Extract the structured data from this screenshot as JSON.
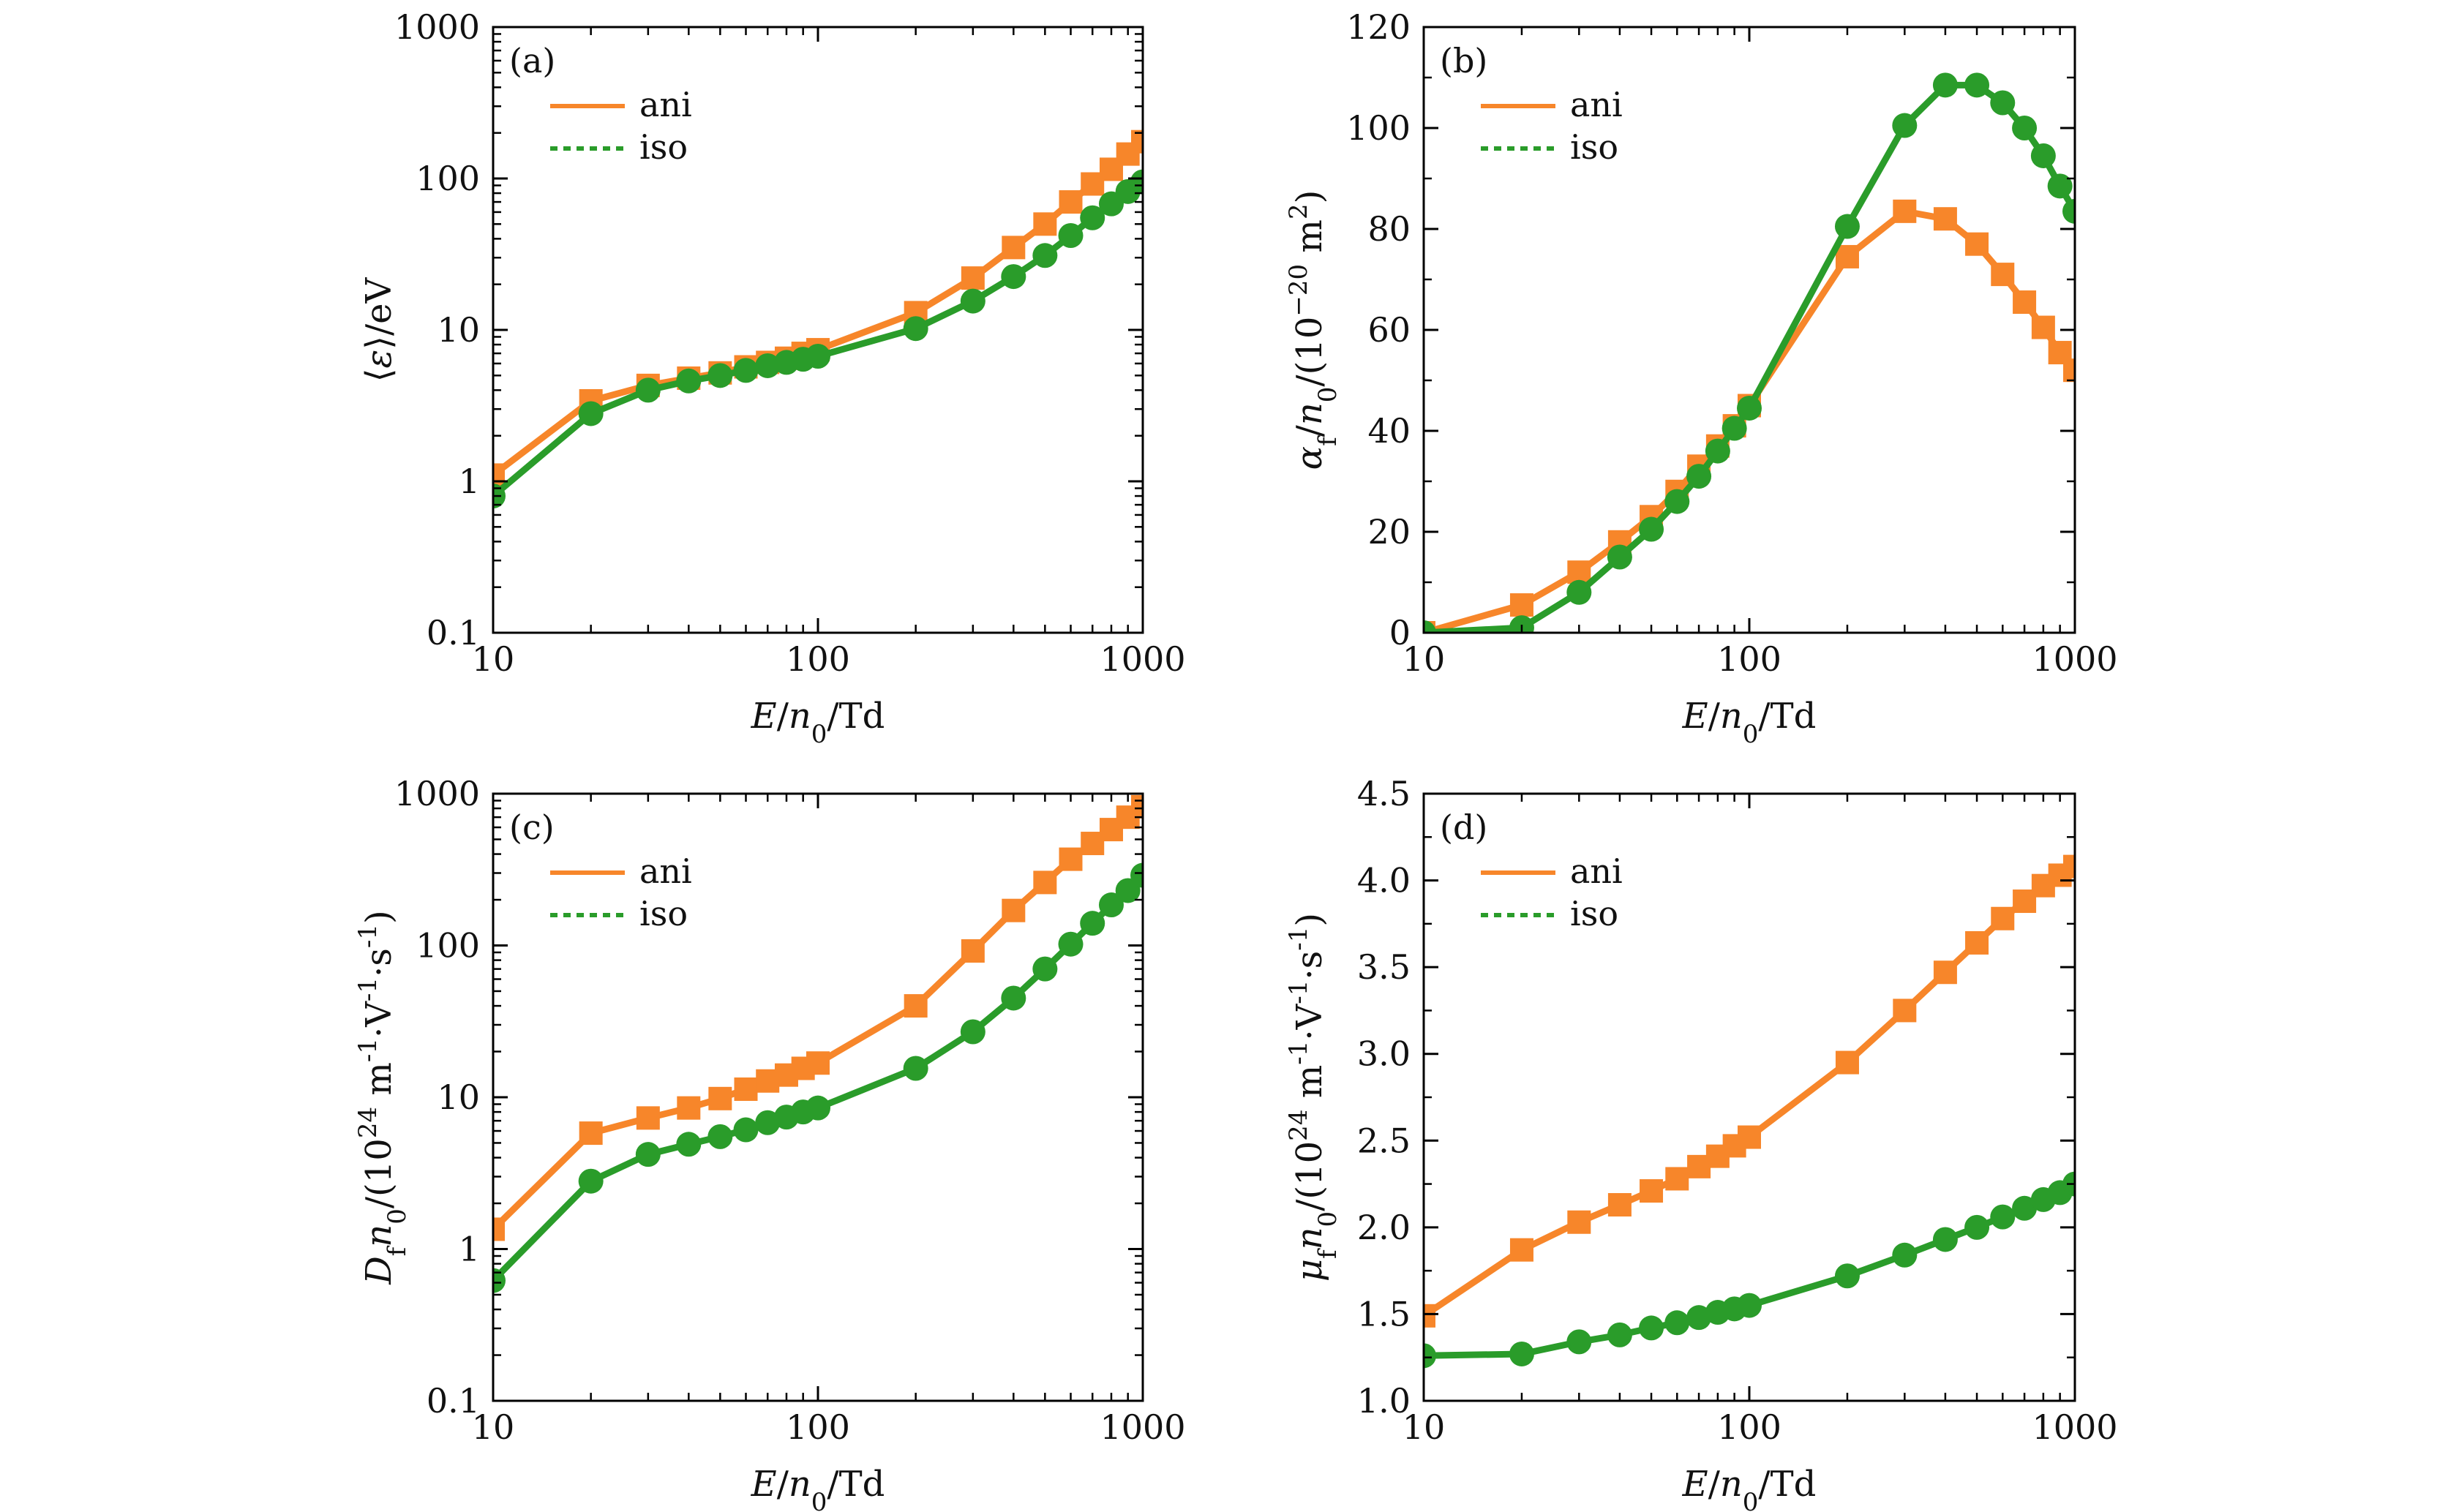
{
  "colors": {
    "ani": "#f7862a",
    "iso": "#2a9c2a",
    "axis": "#000000"
  },
  "chart_data": [
    {
      "type": "line",
      "panel_label": "(a)",
      "xlabel": "E/n0/Td",
      "ylabel": "⟨ε⟩/eV",
      "xscale": "log",
      "yscale": "log",
      "xlim": [
        10,
        1000
      ],
      "ylim": [
        0.1,
        1000
      ],
      "xticks": [
        "10",
        "100",
        "1000"
      ],
      "yticks": [
        "0.1",
        "1",
        "10",
        "100",
        "1000"
      ],
      "legend": "top-left",
      "x": [
        10,
        20,
        30,
        40,
        50,
        60,
        70,
        80,
        90,
        100,
        200,
        300,
        400,
        500,
        600,
        700,
        800,
        900,
        1000
      ],
      "series": [
        {
          "name": "ani",
          "marker": "square",
          "values": [
            1.1,
            3.4,
            4.3,
            4.8,
            5.2,
            5.7,
            6.1,
            6.5,
            7.0,
            7.4,
            13.0,
            22.0,
            35.0,
            50.0,
            70.0,
            92.0,
            115.0,
            145.0,
            175.0
          ]
        },
        {
          "name": "iso",
          "marker": "circle",
          "values": [
            0.8,
            2.8,
            4.0,
            4.6,
            5.0,
            5.4,
            5.8,
            6.1,
            6.4,
            6.7,
            10.2,
            15.5,
            22.5,
            31.0,
            42.0,
            55.0,
            68.0,
            82.0,
            95.0
          ]
        }
      ]
    },
    {
      "type": "line",
      "panel_label": "(b)",
      "xlabel": "E/n0/Td",
      "ylabel": "αf/n0/(10−20 m2)",
      "xscale": "log",
      "yscale": "linear",
      "xlim": [
        10,
        1000
      ],
      "ylim": [
        0,
        120
      ],
      "xticks": [
        "10",
        "100",
        "1000"
      ],
      "yticks": [
        "0",
        "20",
        "40",
        "60",
        "80",
        "100",
        "120"
      ],
      "legend": "top-left",
      "x": [
        10,
        20,
        30,
        40,
        50,
        60,
        70,
        80,
        90,
        100,
        200,
        300,
        400,
        500,
        600,
        700,
        800,
        900,
        1000
      ],
      "series": [
        {
          "name": "ani",
          "marker": "square",
          "values": [
            0,
            5.5,
            12,
            18,
            23,
            28,
            33,
            37,
            41,
            45,
            74.5,
            83.5,
            82,
            77,
            71,
            65.5,
            60.5,
            55.5,
            52
          ]
        },
        {
          "name": "iso",
          "marker": "circle",
          "values": [
            0,
            1,
            8,
            15,
            20.5,
            26,
            31,
            36,
            40.5,
            44.5,
            80.5,
            100.5,
            108.5,
            108.5,
            105,
            100,
            94.5,
            88.5,
            83.5
          ]
        }
      ]
    },
    {
      "type": "line",
      "panel_label": "(c)",
      "xlabel": "E/n0/Td",
      "ylabel": "Dfn0/(1024 m-1·V-1·s-1)",
      "xscale": "log",
      "yscale": "log",
      "xlim": [
        10,
        1000
      ],
      "ylim": [
        0.1,
        1000
      ],
      "xticks": [
        "10",
        "100",
        "1000"
      ],
      "yticks": [
        "0.1",
        "1",
        "10",
        "100",
        "1000"
      ],
      "legend": "top-left",
      "x": [
        10,
        20,
        30,
        40,
        50,
        60,
        70,
        80,
        90,
        100,
        200,
        300,
        400,
        500,
        600,
        700,
        800,
        900,
        1000
      ],
      "series": [
        {
          "name": "ani",
          "marker": "square",
          "values": [
            1.35,
            5.8,
            7.3,
            8.5,
            9.8,
            11.3,
            12.8,
            14.0,
            15.5,
            16.8,
            40.0,
            92.0,
            170.0,
            260.0,
            370.0,
            470.0,
            580.0,
            700.0,
            820.0
          ]
        },
        {
          "name": "iso",
          "marker": "circle",
          "values": [
            0.62,
            2.8,
            4.2,
            4.9,
            5.5,
            6.1,
            6.8,
            7.4,
            8.0,
            8.5,
            15.5,
            27.0,
            45.0,
            70.0,
            102.0,
            140.0,
            185.0,
            230.0,
            290.0
          ]
        }
      ]
    },
    {
      "type": "line",
      "panel_label": "(d)",
      "xlabel": "E/n0/Td",
      "ylabel": "μfn0/(1024 m-1·V-1·s-1)",
      "xscale": "log",
      "yscale": "linear",
      "xlim": [
        10,
        1000
      ],
      "ylim": [
        1.0,
        4.5
      ],
      "xticks": [
        "10",
        "100",
        "1000"
      ],
      "yticks": [
        "1.0",
        "1.5",
        "2.0",
        "2.5",
        "3.0",
        "3.5",
        "4.0",
        "4.5"
      ],
      "legend": "top-left",
      "x": [
        10,
        20,
        30,
        40,
        50,
        60,
        70,
        80,
        90,
        100,
        200,
        300,
        400,
        500,
        600,
        700,
        800,
        900,
        1000
      ],
      "series": [
        {
          "name": "ani",
          "marker": "square",
          "values": [
            1.49,
            1.87,
            2.03,
            2.13,
            2.21,
            2.28,
            2.35,
            2.41,
            2.47,
            2.52,
            2.95,
            3.25,
            3.47,
            3.64,
            3.78,
            3.88,
            3.97,
            4.03,
            4.08
          ]
        },
        {
          "name": "iso",
          "marker": "circle",
          "values": [
            1.26,
            1.27,
            1.34,
            1.38,
            1.42,
            1.45,
            1.48,
            1.51,
            1.53,
            1.55,
            1.72,
            1.84,
            1.93,
            2.0,
            2.06,
            2.11,
            2.16,
            2.2,
            2.25
          ]
        }
      ]
    }
  ]
}
